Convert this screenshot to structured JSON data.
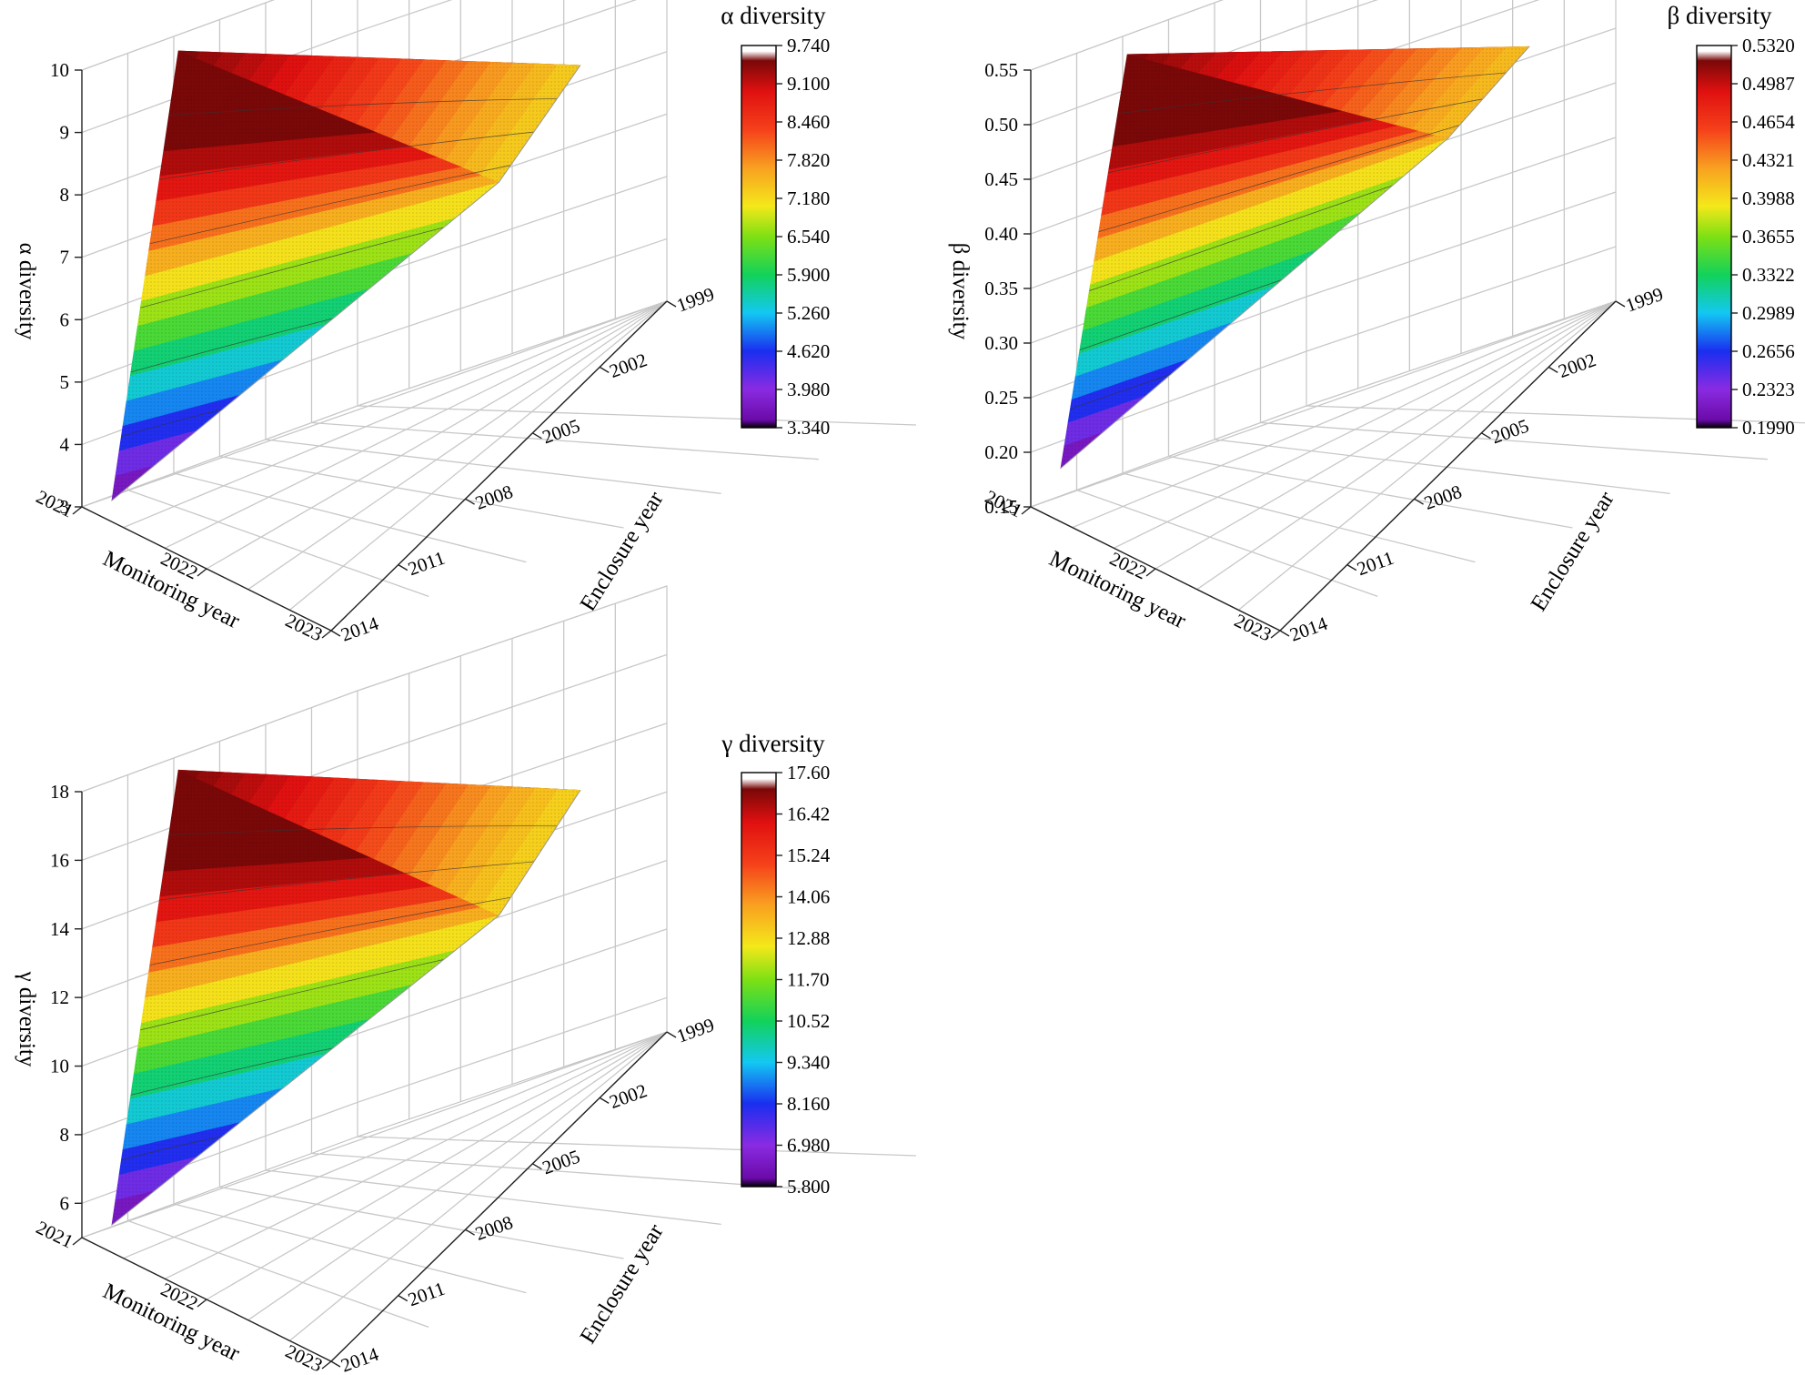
{
  "figure": {
    "axis_labels": {
      "monitoring": "Monitoring year",
      "enclosure": "Enclosure year"
    }
  },
  "chart_data": [
    {
      "type": "surface",
      "title": "α diversity",
      "zlabel": "α diversity",
      "xlabel": "Monitoring year",
      "ylabel": "Enclosure year",
      "x_ticks": [
        "2021",
        "2022",
        "2023"
      ],
      "y_ticks": [
        "1999",
        "2002",
        "2005",
        "2008",
        "2011",
        "2014"
      ],
      "z_ticks": [
        "3",
        "4",
        "5",
        "6",
        "7",
        "8",
        "9",
        "10"
      ],
      "zlim": [
        3,
        10
      ],
      "colorbar_ticks": [
        "9.740",
        "9.100",
        "8.460",
        "7.820",
        "7.180",
        "6.540",
        "5.900",
        "5.260",
        "4.620",
        "3.980",
        "3.340"
      ],
      "colorbar_range": [
        3.34,
        9.74
      ],
      "corner_values": {
        "apex": 9.74,
        "left_tip": 3.34,
        "right_tip": 7.25,
        "ridge_valley": 7.55
      }
    },
    {
      "type": "surface",
      "title": "β diversity",
      "zlabel": "β diversity",
      "xlabel": "Monitoring year",
      "ylabel": "Enclosure year",
      "x_ticks": [
        "2021",
        "2022",
        "2023"
      ],
      "y_ticks": [
        "1999",
        "2002",
        "2005",
        "2008",
        "2011",
        "2014"
      ],
      "z_ticks": [
        "0.15",
        "0.20",
        "0.25",
        "0.30",
        "0.35",
        "0.40",
        "0.45",
        "0.50",
        "0.55"
      ],
      "zlim": [
        0.15,
        0.55
      ],
      "colorbar_ticks": [
        "0.5320",
        "0.4987",
        "0.4654",
        "0.4321",
        "0.3988",
        "0.3655",
        "0.3322",
        "0.2989",
        "0.2656",
        "0.2323",
        "0.1990"
      ],
      "colorbar_range": [
        0.199,
        0.532
      ],
      "corner_values": {
        "apex": 0.532,
        "left_tip": 0.199,
        "right_tip": 0.41,
        "ridge_valley": 0.45
      }
    },
    {
      "type": "surface",
      "title": "γ diversity",
      "zlabel": "γ diversity",
      "xlabel": "Monitoring year",
      "ylabel": "Enclosure year",
      "x_ticks": [
        "2021",
        "2022",
        "2023"
      ],
      "y_ticks": [
        "1999",
        "2002",
        "2005",
        "2008",
        "2011",
        "2014"
      ],
      "z_ticks": [
        "6",
        "8",
        "10",
        "12",
        "14",
        "16",
        "18"
      ],
      "zlim": [
        5,
        18
      ],
      "colorbar_ticks": [
        "17.60",
        "16.42",
        "15.24",
        "14.06",
        "12.88",
        "11.70",
        "10.52",
        "9.340",
        "8.160",
        "6.980",
        "5.800"
      ],
      "colorbar_range": [
        5.8,
        17.6
      ],
      "corner_values": {
        "apex": 17.6,
        "left_tip": 5.8,
        "right_tip": 12.9,
        "ridge_valley": 13.2
      }
    }
  ]
}
